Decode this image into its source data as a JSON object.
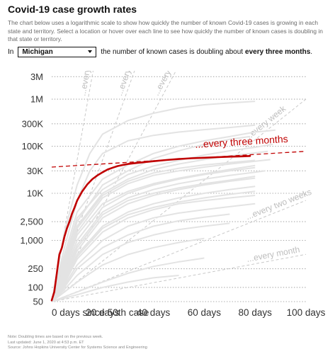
{
  "header": {
    "title": "Covid-19 case growth rates",
    "description": "The chart below uses a logarithmic scale to show how quickly the number of known Covid-19 cases is growing in each state and territory. Select a location or hover over each line to see how quickly the number of known cases is doubling in that state or territory."
  },
  "control": {
    "prefix": "In",
    "selected_location": "Michigan",
    "sentence": "the number of known cases is doubling about",
    "rate": "every three months",
    "end": "."
  },
  "chart_data": {
    "type": "line",
    "y_scale": "log",
    "ylim": [
      50,
      4000000
    ],
    "xlim": [
      0,
      100
    ],
    "x_ticks": [
      "0 days since 50th case",
      "20 days",
      "40 days",
      "60 days",
      "80 days",
      "100 days"
    ],
    "y_ticks": [
      "50",
      "100",
      "250",
      "1,000",
      "2,500",
      "10K",
      "30K",
      "100K",
      "300K",
      "1M",
      "3M"
    ],
    "y_tick_values": [
      50,
      100,
      250,
      1000,
      2500,
      10000,
      30000,
      100000,
      300000,
      1000000,
      3000000
    ],
    "grid": true,
    "highlight_color": "#c00000",
    "others_color": "#e3e3e3",
    "reference_color": "#c8c8c8",
    "highlight": {
      "name": "Michigan",
      "x": [
        0,
        1,
        2,
        3,
        4,
        5,
        6,
        7,
        8,
        9,
        10,
        12,
        14,
        16,
        18,
        20,
        22,
        24,
        26,
        28,
        30,
        35,
        40,
        45,
        50,
        55,
        60,
        65,
        70,
        75,
        78
      ],
      "y": [
        53,
        80,
        200,
        500,
        700,
        1200,
        1800,
        2500,
        3700,
        5000,
        7000,
        11000,
        15500,
        20000,
        24000,
        28000,
        32000,
        35000,
        38000,
        40000,
        42000,
        45000,
        48000,
        51000,
        53500,
        55500,
        57000,
        58500,
        60000,
        61000,
        62000
      ],
      "annotation": "...every three months",
      "trend": {
        "x": [
          0,
          100
        ],
        "y": [
          36000,
          78000
        ]
      }
    },
    "reference_lines": [
      {
        "label": "...every day",
        "days": 1
      },
      {
        "label": "...every two days",
        "days": 2
      },
      {
        "label": "...every three days",
        "days": 3
      },
      {
        "label": "...every week",
        "days": 7
      },
      {
        "label": "...every two weeks",
        "days": 14
      },
      {
        "label": "...every month",
        "days": 30
      }
    ],
    "other_series": [
      {
        "x": [
          0,
          5,
          10,
          15,
          20,
          30,
          40,
          50,
          60,
          70,
          80
        ],
        "y": [
          50,
          1500,
          15000,
          70000,
          180000,
          350000,
          500000,
          650000,
          760000,
          830000,
          900000
        ]
      },
      {
        "x": [
          0,
          5,
          10,
          15,
          20,
          30,
          40,
          50,
          60,
          70,
          80
        ],
        "y": [
          50,
          700,
          7000,
          30000,
          70000,
          130000,
          170000,
          200000,
          225000,
          250000,
          280000
        ]
      },
      {
        "x": [
          0,
          5,
          10,
          20,
          30,
          40,
          50,
          60,
          70,
          80,
          88
        ],
        "y": [
          50,
          500,
          4000,
          20000,
          40000,
          70000,
          100000,
          130000,
          160000,
          200000,
          220000
        ]
      },
      {
        "x": [
          0,
          5,
          10,
          20,
          30,
          40,
          50,
          60,
          70,
          80,
          87
        ],
        "y": [
          50,
          400,
          3000,
          12000,
          25000,
          38000,
          50000,
          65000,
          80000,
          95000,
          110000
        ]
      },
      {
        "x": [
          0,
          5,
          10,
          20,
          30,
          40,
          50,
          60,
          70,
          80,
          85
        ],
        "y": [
          50,
          300,
          2000,
          10000,
          20000,
          32000,
          42000,
          52000,
          62000,
          72000,
          78000
        ]
      },
      {
        "x": [
          0,
          5,
          10,
          20,
          30,
          40,
          50,
          60,
          70,
          80,
          86
        ],
        "y": [
          50,
          250,
          1500,
          8000,
          16000,
          24000,
          30000,
          36000,
          42000,
          48000,
          52000
        ]
      },
      {
        "x": [
          0,
          5,
          10,
          20,
          30,
          40,
          50,
          60,
          70,
          80
        ],
        "y": [
          50,
          200,
          1000,
          5000,
          10000,
          15000,
          20000,
          25000,
          30000,
          35000
        ]
      },
      {
        "x": [
          0,
          5,
          10,
          20,
          30,
          40,
          50,
          60,
          70,
          80,
          84
        ],
        "y": [
          50,
          180,
          800,
          4000,
          8000,
          12000,
          16000,
          20000,
          24000,
          28000,
          30000
        ]
      },
      {
        "x": [
          0,
          5,
          10,
          20,
          30,
          40,
          50,
          60,
          70,
          80
        ],
        "y": [
          50,
          150,
          600,
          3000,
          6000,
          9000,
          12000,
          15000,
          18000,
          21000
        ]
      },
      {
        "x": [
          0,
          5,
          10,
          20,
          30,
          40,
          50,
          60,
          70,
          80
        ],
        "y": [
          50,
          140,
          500,
          2000,
          4000,
          6000,
          8000,
          10000,
          12000,
          14000
        ]
      },
      {
        "x": [
          0,
          5,
          10,
          20,
          30,
          40,
          50,
          60,
          70,
          80
        ],
        "y": [
          50,
          120,
          400,
          1500,
          3000,
          4500,
          6000,
          7000,
          8000,
          9000
        ]
      },
      {
        "x": [
          0,
          5,
          10,
          20,
          30,
          40,
          50,
          60,
          70,
          80
        ],
        "y": [
          50,
          110,
          300,
          1000,
          2000,
          3000,
          3800,
          4500,
          5200,
          6000
        ]
      },
      {
        "x": [
          0,
          5,
          10,
          20,
          30,
          40,
          50,
          60,
          70
        ],
        "y": [
          50,
          100,
          250,
          700,
          1300,
          2000,
          2600,
          3100,
          3600
        ]
      },
      {
        "x": [
          0,
          5,
          10,
          20,
          30,
          40,
          50,
          60,
          70
        ],
        "y": [
          50,
          90,
          180,
          500,
          900,
          1300,
          1700,
          2000,
          2300
        ]
      },
      {
        "x": [
          0,
          5,
          10,
          20,
          30,
          40,
          50,
          60
        ],
        "y": [
          50,
          80,
          130,
          300,
          500,
          700,
          900,
          1100
        ]
      },
      {
        "x": [
          0,
          10,
          20,
          30,
          40,
          50,
          60
        ],
        "y": [
          50,
          80,
          130,
          200,
          280,
          350,
          420
        ]
      },
      {
        "x": [
          0,
          10,
          20,
          30,
          40,
          50
        ],
        "y": [
          50,
          70,
          100,
          130,
          160,
          180
        ]
      },
      {
        "x": [
          0,
          5,
          10,
          20,
          30,
          40,
          50,
          60,
          70,
          78
        ],
        "y": [
          50,
          350,
          2500,
          15000,
          30000,
          55000,
          80000,
          110000,
          140000,
          160000
        ]
      },
      {
        "x": [
          0,
          5,
          10,
          20,
          30,
          40,
          50,
          60,
          70,
          80
        ],
        "y": [
          50,
          260,
          1800,
          9000,
          18000,
          27000,
          34000,
          40000,
          45000,
          50000
        ]
      },
      {
        "x": [
          0,
          5,
          10,
          20,
          30,
          40,
          50,
          60,
          70,
          80
        ],
        "y": [
          50,
          220,
          1300,
          6000,
          11000,
          16000,
          21000,
          26000,
          32000,
          39000
        ]
      },
      {
        "x": [
          0,
          5,
          10,
          20,
          30,
          40,
          50,
          60,
          70,
          80
        ],
        "y": [
          50,
          160,
          700,
          3500,
          7000,
          10000,
          13000,
          16000,
          19000,
          23000
        ]
      },
      {
        "x": [
          0,
          5,
          10,
          20,
          30,
          40,
          50,
          60,
          70,
          80
        ],
        "y": [
          50,
          130,
          450,
          1800,
          3500,
          5000,
          6500,
          8000,
          9500,
          11000
        ]
      }
    ]
  },
  "footer": {
    "note": "Note: Doubling times are based on the previous week.",
    "updated": "Last updated: June 1, 2020 at 4:53 p.m. ET",
    "source": "Source: Johns Hopkins University Center for Systems Science and Engineering"
  }
}
